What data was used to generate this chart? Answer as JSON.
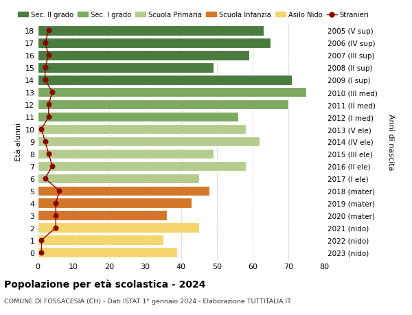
{
  "ages": [
    18,
    17,
    16,
    15,
    14,
    13,
    12,
    11,
    10,
    9,
    8,
    7,
    6,
    5,
    4,
    3,
    2,
    1,
    0
  ],
  "years": [
    "2005 (V sup)",
    "2006 (IV sup)",
    "2007 (III sup)",
    "2008 (II sup)",
    "2009 (I sup)",
    "2010 (III med)",
    "2011 (II med)",
    "2012 (I med)",
    "2013 (V ele)",
    "2014 (IV ele)",
    "2015 (III ele)",
    "2016 (II ele)",
    "2017 (I ele)",
    "2018 (mater)",
    "2019 (mater)",
    "2020 (mater)",
    "2021 (nido)",
    "2022 (nido)",
    "2023 (nido)"
  ],
  "bar_values": [
    63,
    65,
    59,
    49,
    71,
    75,
    70,
    56,
    58,
    62,
    49,
    58,
    45,
    48,
    43,
    36,
    45,
    35,
    39
  ],
  "stranieri": [
    3,
    2,
    3,
    2,
    2,
    4,
    3,
    3,
    1,
    2,
    3,
    4,
    2,
    6,
    5,
    5,
    5,
    1,
    1
  ],
  "bar_colors": [
    "#4a7c3f",
    "#4a7c3f",
    "#4a7c3f",
    "#4a7c3f",
    "#4a7c3f",
    "#7daa60",
    "#7daa60",
    "#7daa60",
    "#b5cc8e",
    "#b5cc8e",
    "#b5cc8e",
    "#b5cc8e",
    "#b5cc8e",
    "#d2762a",
    "#d2762a",
    "#d2762a",
    "#f5d56e",
    "#f5d56e",
    "#f5d56e"
  ],
  "legend_labels": [
    "Sec. II grado",
    "Sec. I grado",
    "Scuola Primaria",
    "Scuola Infanzia",
    "Asilo Nido",
    "Stranieri"
  ],
  "legend_colors": [
    "#4a7c3f",
    "#7daa60",
    "#b5cc8e",
    "#d2762a",
    "#f5d56e",
    "#a00000"
  ],
  "ylabel_left": "Età alunni",
  "ylabel_right": "Anni di nascita",
  "xlim": [
    0,
    80
  ],
  "xticks": [
    0,
    10,
    20,
    30,
    40,
    50,
    60,
    70,
    80
  ],
  "title1": "Popolazione per età scolastica - 2024",
  "title2": "COMUNE DI FOSSACESIA (CH) - Dati ISTAT 1° gennaio 2024 - Elaborazione TUTTITALIA.IT",
  "stranieri_color": "#8b0000",
  "bg_color": "#ffffff",
  "bar_height": 0.82
}
